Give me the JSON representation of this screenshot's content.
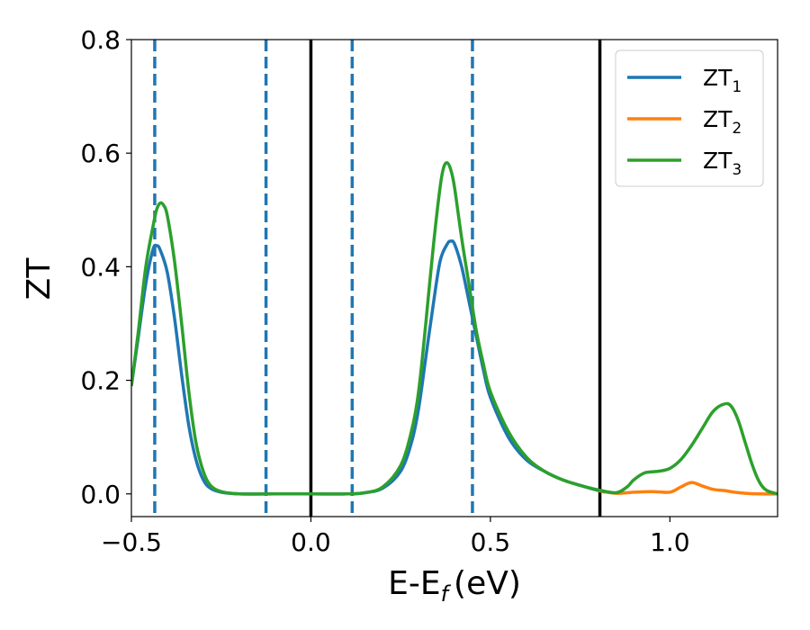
{
  "chart_data": {
    "type": "line",
    "xlabel": "E-E",
    "xlabel_sub": "f",
    "xlabel_unit": "(eV)",
    "ylabel": "ZT",
    "xlim": [
      -0.5,
      1.3
    ],
    "ylim": [
      -0.04,
      0.8
    ],
    "xticks": [
      -0.5,
      0.0,
      0.5,
      1.0
    ],
    "xtick_labels": [
      "−0.5",
      "0.0",
      "0.5",
      "1.0"
    ],
    "yticks": [
      0.0,
      0.2,
      0.4,
      0.6,
      0.8
    ],
    "ytick_labels": [
      "0.0",
      "0.2",
      "0.4",
      "0.6",
      "0.8"
    ],
    "vlines_dashed": [
      -0.435,
      -0.125,
      0.115,
      0.45
    ],
    "vlines_solid": [
      0.0,
      0.805
    ],
    "legend_position": "top-right",
    "series": [
      {
        "name": "ZT",
        "sub": "1",
        "color": "#1f77b4",
        "x": [
          -0.5,
          -0.48,
          -0.46,
          -0.44,
          -0.43,
          -0.42,
          -0.4,
          -0.38,
          -0.36,
          -0.34,
          -0.32,
          -0.3,
          -0.28,
          -0.25,
          -0.2,
          -0.1,
          0.0,
          0.1,
          0.15,
          0.2,
          0.25,
          0.28,
          0.3,
          0.32,
          0.34,
          0.36,
          0.38,
          0.39,
          0.4,
          0.42,
          0.44,
          0.46,
          0.48,
          0.5,
          0.55,
          0.6,
          0.65,
          0.7,
          0.75,
          0.8,
          0.82
        ],
        "y": [
          0.19,
          0.28,
          0.37,
          0.43,
          0.437,
          0.43,
          0.39,
          0.31,
          0.21,
          0.12,
          0.06,
          0.025,
          0.01,
          0.003,
          0.0,
          0.0,
          0.0,
          0.0,
          0.002,
          0.01,
          0.04,
          0.09,
          0.15,
          0.24,
          0.33,
          0.41,
          0.44,
          0.445,
          0.44,
          0.4,
          0.34,
          0.28,
          0.22,
          0.17,
          0.1,
          0.06,
          0.04,
          0.025,
          0.015,
          0.006,
          0.003
        ]
      },
      {
        "name": "ZT",
        "sub": "2",
        "color": "#ff7f0e",
        "x": [
          0.8,
          0.85,
          0.9,
          0.95,
          1.0,
          1.03,
          1.06,
          1.09,
          1.12,
          1.15,
          1.18,
          1.21,
          1.25,
          1.3
        ],
        "y": [
          0.006,
          0.001,
          0.003,
          0.004,
          0.003,
          0.012,
          0.02,
          0.014,
          0.008,
          0.006,
          0.003,
          0.001,
          0.0,
          0.0
        ]
      },
      {
        "name": "ZT",
        "sub": "3",
        "color": "#2ca02c",
        "x": [
          -0.5,
          -0.48,
          -0.46,
          -0.44,
          -0.43,
          -0.42,
          -0.41,
          -0.4,
          -0.38,
          -0.36,
          -0.34,
          -0.32,
          -0.3,
          -0.28,
          -0.25,
          -0.2,
          -0.1,
          0.0,
          0.1,
          0.15,
          0.2,
          0.25,
          0.28,
          0.3,
          0.32,
          0.34,
          0.36,
          0.37,
          0.38,
          0.39,
          0.4,
          0.42,
          0.44,
          0.46,
          0.48,
          0.5,
          0.55,
          0.6,
          0.65,
          0.7,
          0.75,
          0.8,
          0.85,
          0.88,
          0.9,
          0.93,
          0.97,
          1.0,
          1.03,
          1.06,
          1.09,
          1.12,
          1.15,
          1.17,
          1.19,
          1.21,
          1.23,
          1.25,
          1.27,
          1.3
        ],
        "y": [
          0.19,
          0.29,
          0.4,
          0.47,
          0.5,
          0.512,
          0.508,
          0.49,
          0.41,
          0.3,
          0.18,
          0.09,
          0.04,
          0.015,
          0.004,
          0.0,
          0.0,
          0.0,
          0.0,
          0.002,
          0.012,
          0.05,
          0.11,
          0.18,
          0.3,
          0.43,
          0.54,
          0.575,
          0.583,
          0.57,
          0.54,
          0.45,
          0.37,
          0.29,
          0.23,
          0.18,
          0.11,
          0.065,
          0.04,
          0.025,
          0.015,
          0.007,
          0.002,
          0.012,
          0.025,
          0.037,
          0.04,
          0.045,
          0.06,
          0.085,
          0.115,
          0.145,
          0.158,
          0.155,
          0.13,
          0.09,
          0.05,
          0.02,
          0.006,
          0.0
        ]
      }
    ]
  }
}
